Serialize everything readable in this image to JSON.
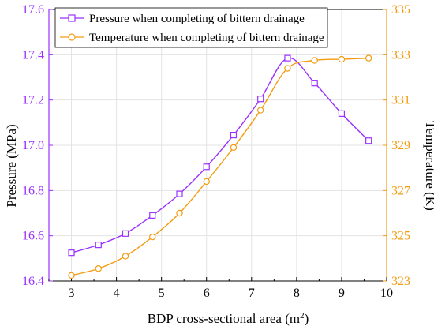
{
  "chart_data": {
    "type": "line",
    "x": [
      3.0,
      3.6,
      4.2,
      4.8,
      5.4,
      6.0,
      6.6,
      7.2,
      7.8,
      8.4,
      9.0,
      9.6
    ],
    "xlabel": "BDP cross-sectional area (m",
    "xlabel_sup": "2",
    "xlabel_end": ")",
    "xlim": [
      2.5,
      10
    ],
    "xticks": [
      "3",
      "4",
      "5",
      "6",
      "7",
      "8",
      "9",
      "10"
    ],
    "grid": true,
    "legend_position": "top-left",
    "left_axis": {
      "label": "Pressure (MPa)",
      "color": "#9b30ff",
      "ylim": [
        16.4,
        17.6
      ],
      "ticks": [
        "16.4",
        "16.6",
        "16.8",
        "17.0",
        "17.2",
        "17.4",
        "17.6"
      ]
    },
    "right_axis": {
      "label": "Temperature (K)",
      "color": "#f39c12",
      "ylim": [
        323,
        335
      ],
      "ticks": [
        "323",
        "325",
        "327",
        "329",
        "331",
        "333",
        "335"
      ]
    },
    "series": [
      {
        "name": "Pressure when completing of bittern drainage",
        "axis": "left",
        "marker": "square",
        "color": "#9b30ff",
        "values": [
          16.525,
          16.56,
          16.61,
          16.69,
          16.785,
          16.905,
          17.045,
          17.205,
          17.385,
          17.275,
          17.14,
          17.02
        ]
      },
      {
        "name": "Temperature when completing of bittern drainage",
        "axis": "right",
        "marker": "circle",
        "color": "#f39c12",
        "values": [
          323.25,
          323.55,
          324.1,
          324.95,
          326.0,
          327.4,
          328.9,
          330.55,
          332.4,
          332.75,
          332.8,
          332.85
        ]
      }
    ]
  }
}
